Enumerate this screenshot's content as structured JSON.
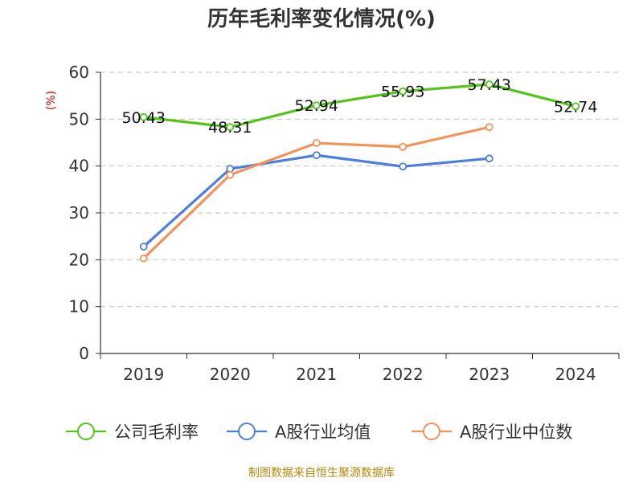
{
  "chart_data": {
    "type": "line",
    "title": "历年毛利率变化情况(%)",
    "unit": "(%)",
    "categories": [
      "2019",
      "2020",
      "2021",
      "2022",
      "2023",
      "2024"
    ],
    "ylim": [
      0,
      60
    ],
    "yticks": [
      0,
      10,
      20,
      30,
      40,
      50,
      60
    ],
    "grid": true,
    "legend_position": "bottom",
    "series": [
      {
        "name": "公司毛利率",
        "color": "#52c41a",
        "values": [
          50.43,
          48.31,
          52.94,
          55.93,
          57.43,
          52.74
        ],
        "labels": [
          "50.43",
          "48.31",
          "52.94",
          "55.93",
          "57.43",
          "52.74"
        ]
      },
      {
        "name": "A股行业均值",
        "color": "#4e7fdd",
        "values": [
          22.8,
          39.4,
          42.3,
          39.9,
          41.6,
          null
        ]
      },
      {
        "name": "A股行业中位数",
        "color": "#f4925c",
        "values": [
          20.3,
          38.1,
          44.9,
          44.1,
          48.3,
          null
        ]
      }
    ]
  },
  "source": "制图数据来自恒生聚源数据库"
}
